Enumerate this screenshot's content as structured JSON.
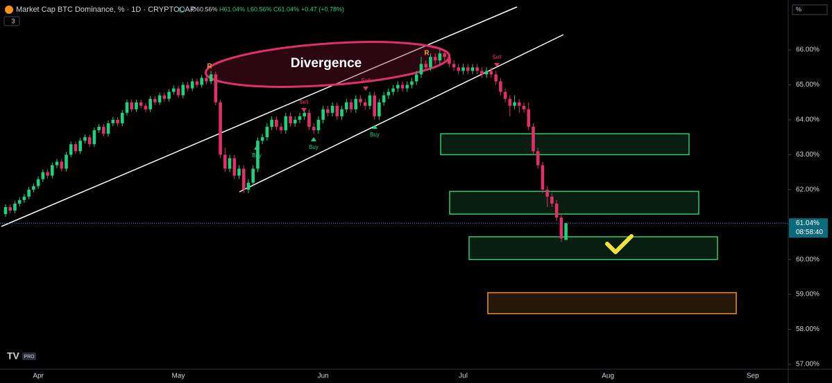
{
  "header": {
    "symbol": "Market Cap BTC Dominance, % · 1D · CRYPTOCAP",
    "open": "O60.56%",
    "high": "H61.04%",
    "low": "L60.56%",
    "close": "C61.04%",
    "change": "+0.47 (+0.78%)",
    "badge": "3",
    "scale_button": "%",
    "logo": "PRO"
  },
  "chart_data": {
    "type": "candlestick",
    "up_color": "#1fd17a",
    "down_color": "#e0306a",
    "ylim": [
      56.86,
      67.43
    ],
    "yticks": [
      {
        "value": 66,
        "label": "66.00%"
      },
      {
        "value": 65,
        "label": "65.00%"
      },
      {
        "value": 64,
        "label": "64.00%"
      },
      {
        "value": 63,
        "label": "63.00%"
      },
      {
        "value": 62,
        "label": "62.00%"
      },
      {
        "value": 61,
        "label": "61.00%"
      },
      {
        "value": 60,
        "label": "60.00%"
      },
      {
        "value": 59,
        "label": "59.00%"
      },
      {
        "value": 58,
        "label": "58.00%"
      },
      {
        "value": 57,
        "label": "57.00%"
      }
    ],
    "price_label": "61.04%",
    "countdown": "08:58:40",
    "annotations": [
      "Divergence",
      "Buy",
      "Buy",
      "Buy",
      "Sell",
      "Sell",
      "Sell",
      "R",
      "R"
    ],
    "zones": [
      {
        "top": 63.6,
        "bottom": 63.0,
        "color": "#2ecc71"
      },
      {
        "top": 61.95,
        "bottom": 61.3,
        "color": "#2ecc71"
      },
      {
        "top": 60.65,
        "bottom": 60.0,
        "color": "#2ecc71"
      },
      {
        "top": 59.05,
        "bottom": 58.45,
        "color": "#f0913a"
      }
    ],
    "categories": [
      null,
      null,
      null,
      null,
      null,
      null,
      null,
      "Apr",
      null,
      null,
      null,
      null,
      null,
      null,
      null,
      null,
      null,
      null,
      null,
      null,
      null,
      null,
      null,
      null,
      null,
      null,
      null,
      null,
      null,
      null,
      null,
      null,
      null,
      null,
      null,
      null,
      null,
      "May",
      null,
      null,
      null,
      null,
      null,
      null,
      null,
      null,
      null,
      null,
      null,
      null,
      null,
      null,
      null,
      null,
      null,
      null,
      null,
      null,
      null,
      null,
      null,
      null,
      null,
      null,
      null,
      null,
      null,
      null,
      "Jun",
      null,
      null,
      null,
      null,
      null,
      null,
      null,
      null,
      null,
      null,
      null,
      null,
      null,
      null,
      null,
      null,
      null,
      null,
      null,
      null,
      null,
      null,
      null,
      null,
      null,
      null,
      null,
      null,
      null,
      "Jul",
      null,
      null,
      null,
      null,
      null,
      null,
      null,
      null,
      null,
      null,
      null,
      null,
      null,
      null,
      null,
      null,
      null,
      null,
      null,
      null,
      null,
      null,
      null,
      null,
      null,
      null,
      null,
      null,
      null,
      null,
      "Aug",
      null,
      null,
      null,
      null,
      null,
      null,
      null,
      null,
      null,
      null,
      null,
      null,
      null,
      null,
      null,
      null,
      null,
      null,
      null,
      null,
      null,
      null,
      null,
      null,
      null,
      null,
      null,
      null,
      null,
      null,
      "Sep",
      null,
      null,
      null,
      null,
      null,
      null,
      null
    ],
    "candles": [
      [
        61.3,
        61.58,
        61.22,
        61.5
      ],
      [
        61.5,
        61.58,
        61.32,
        61.4
      ],
      [
        61.4,
        61.68,
        61.32,
        61.6
      ],
      [
        61.6,
        61.78,
        61.52,
        61.7
      ],
      [
        61.7,
        61.88,
        61.62,
        61.8
      ],
      [
        61.8,
        62.08,
        61.72,
        62.0
      ],
      [
        62.0,
        62.18,
        61.92,
        62.1
      ],
      [
        62.1,
        62.38,
        62.02,
        62.3
      ],
      [
        62.3,
        62.58,
        62.22,
        62.5
      ],
      [
        62.5,
        62.58,
        62.32,
        62.4
      ],
      [
        62.4,
        62.78,
        62.32,
        62.7
      ],
      [
        62.7,
        62.88,
        62.62,
        62.8
      ],
      [
        62.8,
        62.88,
        62.52,
        62.6
      ],
      [
        62.6,
        63.08,
        62.52,
        63.0
      ],
      [
        63.0,
        63.38,
        62.92,
        63.3
      ],
      [
        63.3,
        63.38,
        63.02,
        63.1
      ],
      [
        63.1,
        63.48,
        63.02,
        63.4
      ],
      [
        63.4,
        63.58,
        63.32,
        63.5
      ],
      [
        63.5,
        63.58,
        63.22,
        63.3
      ],
      [
        63.3,
        63.78,
        63.22,
        63.7
      ],
      [
        63.7,
        63.88,
        63.62,
        63.8
      ],
      [
        63.8,
        63.88,
        63.52,
        63.6
      ],
      [
        63.6,
        63.98,
        63.52,
        63.9
      ],
      [
        63.9,
        64.08,
        63.82,
        64.0
      ],
      [
        64.0,
        64.08,
        63.82,
        63.9
      ],
      [
        63.9,
        64.28,
        63.82,
        64.2
      ],
      [
        64.2,
        64.58,
        64.12,
        64.5
      ],
      [
        64.5,
        64.58,
        64.22,
        64.3
      ],
      [
        64.3,
        64.58,
        64.22,
        64.5
      ],
      [
        64.5,
        64.58,
        64.32,
        64.4
      ],
      [
        64.4,
        64.48,
        64.22,
        64.3
      ],
      [
        64.3,
        64.68,
        64.22,
        64.6
      ],
      [
        64.6,
        64.68,
        64.42,
        64.5
      ],
      [
        64.5,
        64.78,
        64.42,
        64.7
      ],
      [
        64.7,
        64.78,
        64.52,
        64.6
      ],
      [
        64.6,
        64.88,
        64.52,
        64.8
      ],
      [
        64.8,
        64.98,
        64.72,
        64.9
      ],
      [
        64.9,
        64.98,
        64.62,
        64.7
      ],
      [
        64.7,
        65.08,
        64.62,
        65.0
      ],
      [
        65.0,
        65.08,
        64.82,
        64.9
      ],
      [
        64.9,
        65.18,
        64.82,
        65.1
      ],
      [
        65.1,
        65.18,
        64.92,
        65.0
      ],
      [
        65.0,
        65.28,
        64.92,
        65.2
      ],
      [
        65.2,
        65.28,
        65.02,
        65.1
      ],
      [
        65.1,
        65.4,
        65.02,
        65.3
      ],
      [
        65.3,
        65.38,
        64.42,
        64.5
      ],
      [
        64.5,
        64.58,
        62.9,
        63.0
      ],
      [
        63.0,
        63.2,
        62.5,
        62.6
      ],
      [
        62.6,
        63.0,
        62.5,
        62.9
      ],
      [
        62.9,
        63.0,
        62.3,
        62.4
      ],
      [
        62.4,
        62.7,
        62.3,
        62.6
      ],
      [
        62.6,
        62.7,
        61.9,
        62.0
      ],
      [
        62.0,
        62.3,
        61.9,
        62.2
      ],
      [
        62.2,
        62.7,
        62.1,
        62.6
      ],
      [
        62.6,
        63.5,
        62.5,
        63.4
      ],
      [
        63.4,
        63.6,
        63.3,
        63.5
      ],
      [
        63.5,
        63.9,
        63.4,
        63.8
      ],
      [
        63.8,
        64.1,
        63.7,
        64.0
      ],
      [
        64.0,
        64.1,
        63.7,
        63.8
      ],
      [
        63.8,
        63.9,
        63.6,
        63.7
      ],
      [
        63.7,
        64.2,
        63.6,
        64.1
      ],
      [
        64.1,
        64.2,
        63.8,
        63.9
      ],
      [
        63.9,
        64.1,
        63.8,
        64.0
      ],
      [
        64.0,
        64.2,
        63.9,
        64.1
      ],
      [
        64.1,
        64.3,
        64.0,
        64.2
      ],
      [
        64.2,
        64.3,
        63.7,
        63.8
      ],
      [
        63.8,
        63.9,
        63.6,
        63.7
      ],
      [
        63.7,
        64.1,
        63.6,
        64.0
      ],
      [
        64.0,
        64.4,
        63.9,
        64.3
      ],
      [
        64.3,
        64.4,
        64.1,
        64.2
      ],
      [
        64.2,
        64.5,
        64.1,
        64.4
      ],
      [
        64.4,
        64.5,
        64.0,
        64.1
      ],
      [
        64.1,
        64.4,
        64.0,
        64.3
      ],
      [
        64.3,
        64.6,
        64.2,
        64.5
      ],
      [
        64.5,
        64.6,
        64.2,
        64.3
      ],
      [
        64.3,
        64.7,
        64.2,
        64.6
      ],
      [
        64.6,
        64.7,
        64.4,
        64.5
      ],
      [
        64.5,
        64.6,
        64.3,
        64.4
      ],
      [
        64.4,
        64.8,
        64.3,
        64.7
      ],
      [
        64.7,
        64.8,
        64.0,
        64.1
      ],
      [
        64.1,
        64.6,
        64.0,
        64.5
      ],
      [
        64.5,
        64.8,
        64.4,
        64.7
      ],
      [
        64.7,
        64.9,
        64.6,
        64.8
      ],
      [
        64.8,
        65.0,
        64.7,
        64.9
      ],
      [
        64.9,
        65.1,
        64.8,
        65.0
      ],
      [
        65.0,
        65.1,
        64.8,
        64.9
      ],
      [
        64.9,
        65.1,
        64.8,
        65.0
      ],
      [
        65.0,
        65.2,
        64.9,
        65.1
      ],
      [
        65.1,
        65.4,
        65.0,
        65.3
      ],
      [
        65.3,
        65.8,
        65.2,
        65.6
      ],
      [
        65.6,
        65.7,
        65.4,
        65.5
      ],
      [
        65.5,
        65.9,
        65.4,
        65.8
      ],
      [
        65.8,
        65.9,
        65.6,
        65.7
      ],
      [
        65.7,
        66.0,
        65.6,
        65.9
      ],
      [
        65.9,
        66.0,
        65.7,
        65.8
      ],
      [
        65.8,
        65.9,
        65.5,
        65.6
      ],
      [
        65.6,
        65.7,
        65.4,
        65.5
      ],
      [
        65.5,
        65.6,
        65.3,
        65.4
      ],
      [
        65.4,
        65.6,
        65.3,
        65.5
      ],
      [
        65.5,
        65.6,
        65.3,
        65.4
      ],
      [
        65.4,
        65.6,
        65.3,
        65.5
      ],
      [
        65.5,
        65.6,
        65.3,
        65.4
      ],
      [
        65.4,
        65.5,
        65.2,
        65.3
      ],
      [
        65.3,
        65.5,
        65.2,
        65.4
      ],
      [
        65.4,
        65.5,
        65.2,
        65.3
      ],
      [
        65.3,
        65.4,
        65.0,
        65.1
      ],
      [
        65.1,
        65.2,
        64.7,
        64.8
      ],
      [
        64.8,
        64.9,
        64.5,
        64.6
      ],
      [
        64.6,
        64.7,
        64.1,
        64.4
      ],
      [
        64.4,
        64.7,
        64.3,
        64.5
      ],
      [
        64.5,
        64.6,
        64.2,
        64.4
      ],
      [
        64.4,
        64.5,
        64.2,
        64.3
      ],
      [
        64.3,
        64.5,
        63.7,
        63.8
      ],
      [
        63.8,
        63.9,
        63.0,
        63.1
      ],
      [
        63.1,
        63.2,
        62.6,
        62.7
      ],
      [
        62.7,
        62.8,
        61.9,
        62.0
      ],
      [
        62.0,
        62.1,
        61.5,
        61.8
      ],
      [
        61.8,
        61.9,
        61.5,
        61.6
      ],
      [
        61.6,
        61.7,
        61.1,
        61.2
      ],
      [
        61.2,
        61.3,
        60.5,
        60.6
      ],
      [
        60.56,
        61.04,
        60.56,
        61.04
      ],
      null,
      null,
      null,
      null,
      null,
      null,
      null,
      null,
      null,
      null,
      null,
      null,
      null,
      null,
      null,
      null,
      null,
      null,
      null,
      null,
      null,
      null,
      null,
      null,
      null,
      null,
      null,
      null,
      null,
      null,
      null,
      null,
      null,
      null,
      null,
      null,
      null,
      null,
      null,
      null,
      null,
      null,
      null,
      null,
      null,
      null
    ]
  }
}
